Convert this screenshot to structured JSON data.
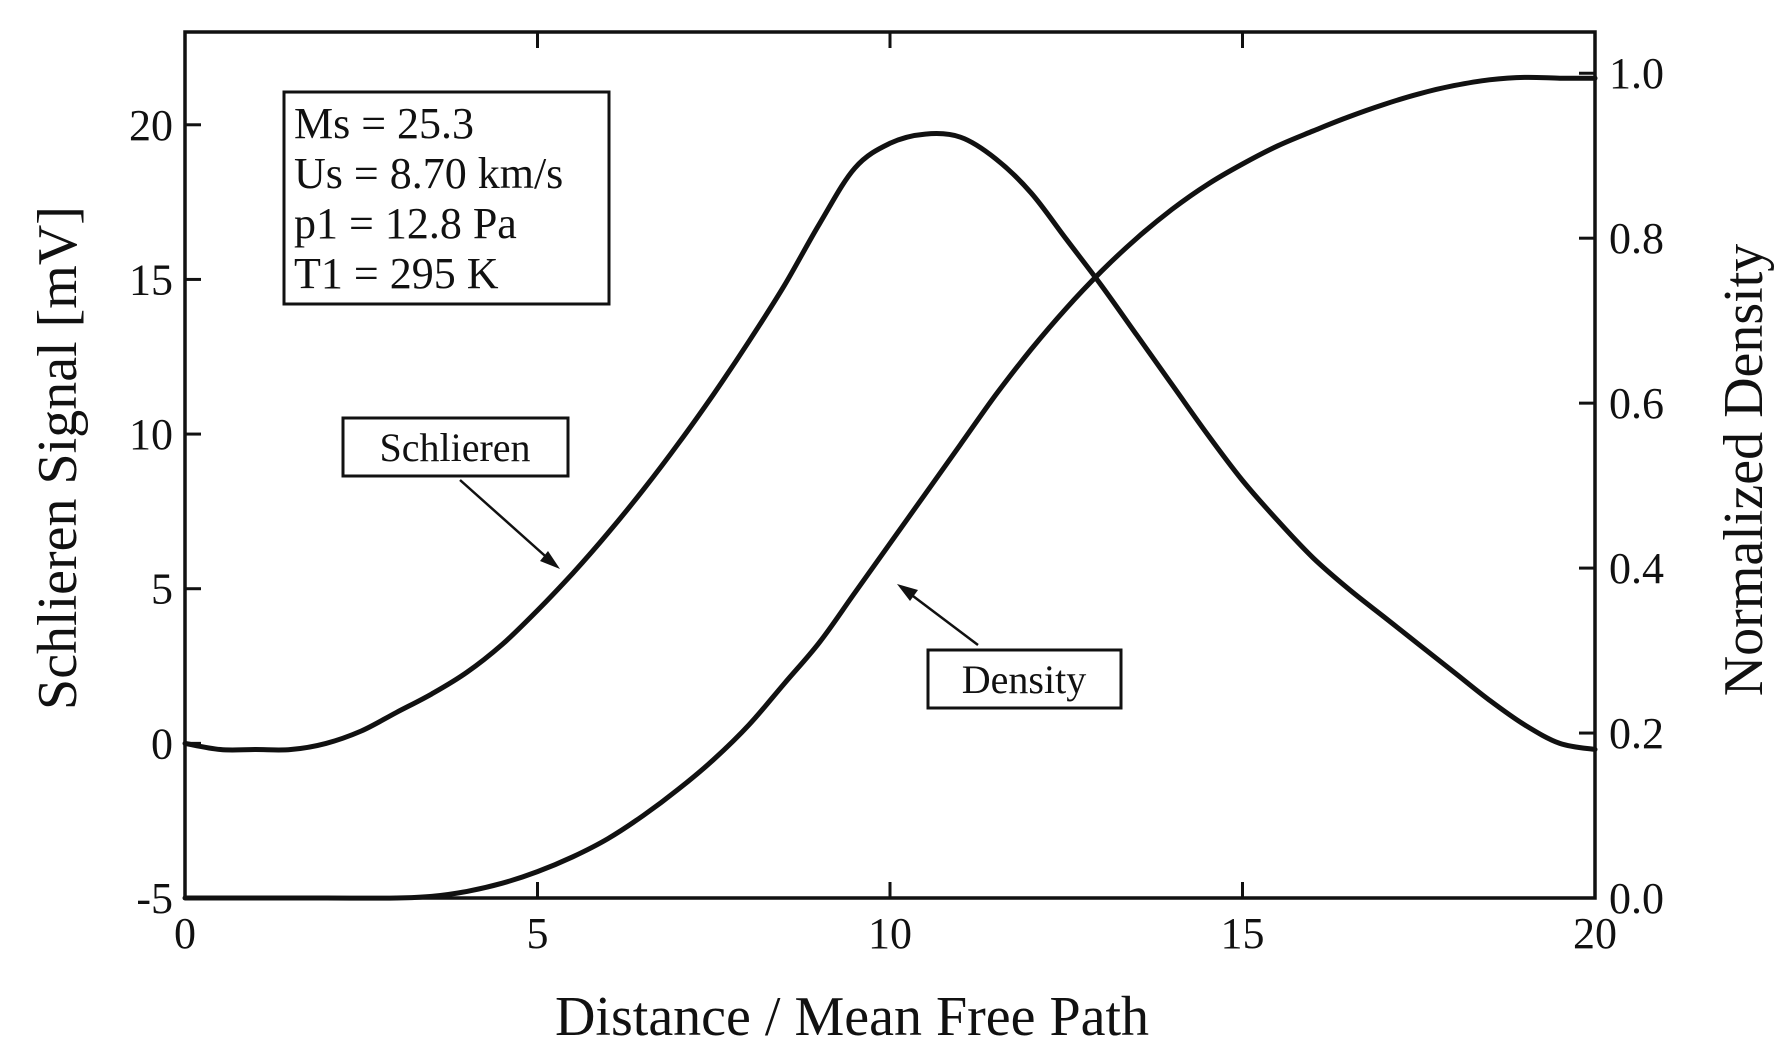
{
  "chart_data": {
    "type": "line",
    "xlabel": "Distance / Mean Free Path",
    "ylabel": "Schlieren Signal [mV]",
    "y2label": "Normalized Density",
    "xlim": [
      0,
      20
    ],
    "ylim": [
      -5,
      23
    ],
    "y2lim": [
      0,
      1.05
    ],
    "x_ticks": [
      0,
      5,
      10,
      15,
      20
    ],
    "y_ticks": [
      -5,
      0,
      5,
      10,
      15,
      20
    ],
    "y2_ticks": [
      "0.0",
      "0.2",
      "0.4",
      "0.6",
      "0.8",
      "1.0"
    ],
    "grid": false,
    "parameters": [
      "Ms = 25.3",
      "Us = 8.70 km/s",
      "p1 = 12.8 Pa",
      "T1 = 295 K"
    ],
    "series": [
      {
        "name": "Schlieren",
        "axis": "left",
        "x": [
          0,
          0.5,
          1,
          1.5,
          2,
          2.5,
          3,
          3.5,
          4,
          4.5,
          5,
          5.5,
          6,
          6.5,
          7,
          7.5,
          8,
          8.5,
          9,
          9.5,
          10,
          10.5,
          11,
          11.5,
          12,
          12.5,
          13,
          13.5,
          14,
          14.5,
          15,
          15.5,
          16,
          16.5,
          17,
          17.5,
          18,
          18.5,
          19,
          19.5,
          20
        ],
        "values": [
          0.0,
          -0.2,
          -0.2,
          -0.2,
          0.0,
          0.4,
          1.0,
          1.6,
          2.3,
          3.2,
          4.3,
          5.5,
          6.8,
          8.2,
          9.7,
          11.3,
          13.0,
          14.8,
          16.8,
          18.6,
          19.4,
          19.7,
          19.6,
          18.9,
          17.8,
          16.3,
          14.8,
          13.2,
          11.6,
          10.0,
          8.5,
          7.2,
          6.0,
          5.0,
          4.1,
          3.2,
          2.3,
          1.4,
          0.6,
          0.0,
          -0.2
        ]
      },
      {
        "name": "Density",
        "axis": "right",
        "x": [
          0,
          1,
          2,
          3,
          3.5,
          4,
          4.5,
          5,
          5.5,
          6,
          6.5,
          7,
          7.5,
          8,
          8.5,
          9,
          9.5,
          10,
          10.5,
          11,
          11.5,
          12,
          12.5,
          13,
          13.5,
          14,
          14.5,
          15,
          15.5,
          16,
          16.5,
          17,
          17.5,
          18,
          18.5,
          19,
          19.5,
          20
        ],
        "values": [
          0.0,
          0.0,
          0.0,
          0.0,
          0.002,
          0.008,
          0.018,
          0.032,
          0.05,
          0.072,
          0.1,
          0.132,
          0.168,
          0.21,
          0.26,
          0.31,
          0.37,
          0.43,
          0.49,
          0.55,
          0.61,
          0.665,
          0.715,
          0.76,
          0.8,
          0.835,
          0.865,
          0.89,
          0.912,
          0.93,
          0.947,
          0.962,
          0.975,
          0.985,
          0.992,
          0.995,
          0.994,
          0.994
        ]
      }
    ],
    "annotations": [
      {
        "text": "Schlieren",
        "target_series": "Schlieren"
      },
      {
        "text": "Density",
        "target_series": "Density"
      }
    ]
  }
}
